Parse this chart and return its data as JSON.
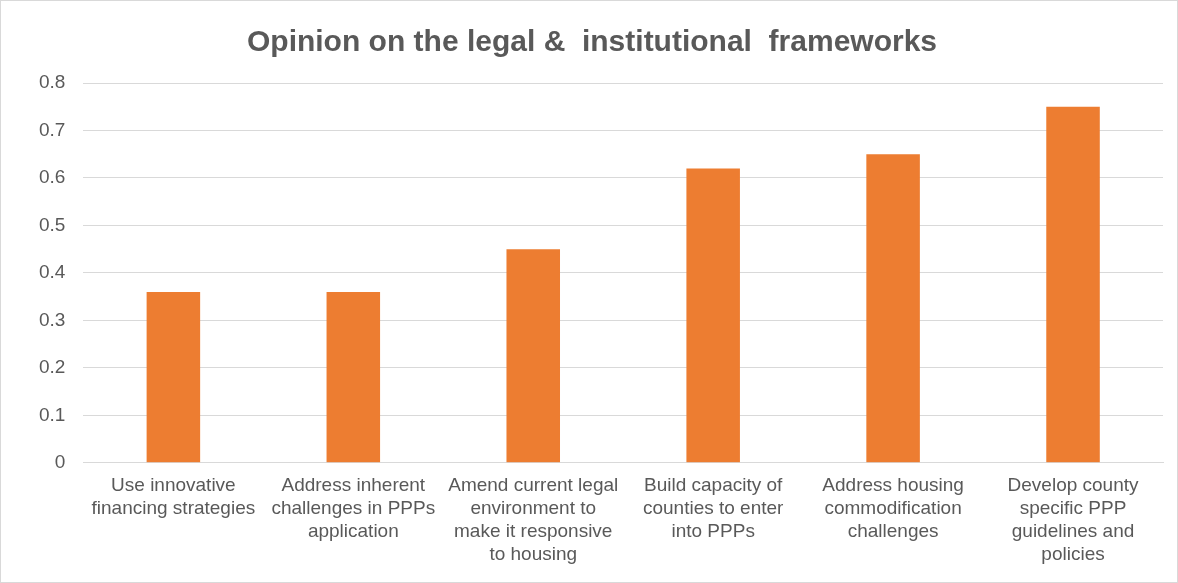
{
  "chart_data": {
    "type": "bar",
    "title": "Opinion on the legal &  institutional  frameworks",
    "categories": [
      "Use innovative financing strategies",
      "Address inherent challenges in PPPs application",
      "Amend current legal environment to make it responsive to housing",
      "Build capacity of counties to enter into PPPs",
      "Address housing commodification challenges",
      "Develop county specific PPP guidelines and policies"
    ],
    "values": [
      0.36,
      0.36,
      0.45,
      0.62,
      0.65,
      0.75
    ],
    "color": "#ed7d31",
    "ylim": [
      0,
      0.8
    ],
    "yticks": [
      0,
      0.1,
      0.2,
      0.3,
      0.4,
      0.5,
      0.6,
      0.7,
      0.8
    ],
    "grid": "y",
    "legend": false
  }
}
